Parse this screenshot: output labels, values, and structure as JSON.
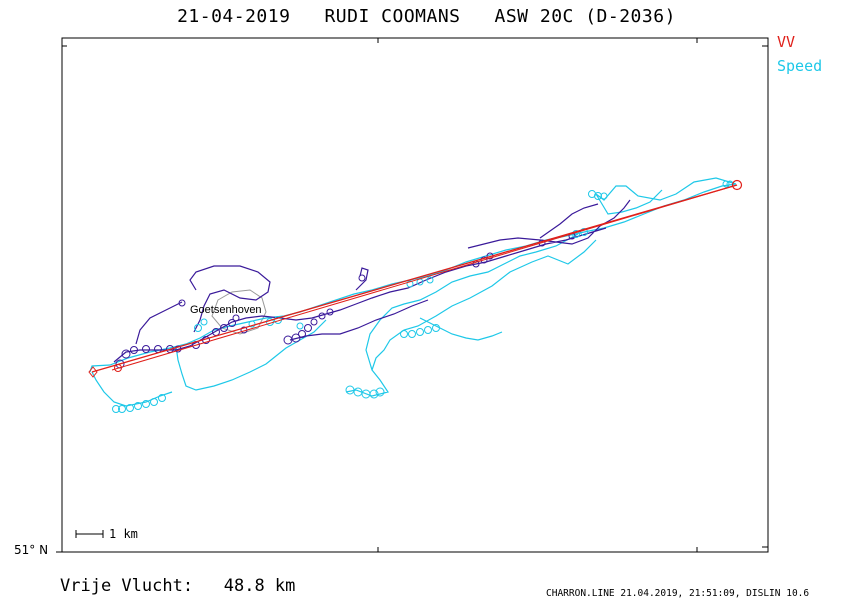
{
  "header": {
    "title": "21-04-2019   RUDI COOMANS   ASW 20C (D-2036)"
  },
  "legend": {
    "items": [
      {
        "label": "VV",
        "color": "#e0201a"
      },
      {
        "label": "Speed",
        "color": "#1ec8e8"
      }
    ]
  },
  "map": {
    "latitude_label": "51° N",
    "scale_label": "1 km",
    "place_label": "Goetsenhoven",
    "colors": {
      "route": "#e0201a",
      "track_climb": "#3a1a9a",
      "track_speed": "#1ec8e8",
      "frame": "#000000"
    }
  },
  "footer": {
    "distance": "Vrije Vlucht:   48.8 km",
    "info": "CHARRON.LINE 21.04.2019, 21:51:09, DISLIN 10.6"
  }
}
